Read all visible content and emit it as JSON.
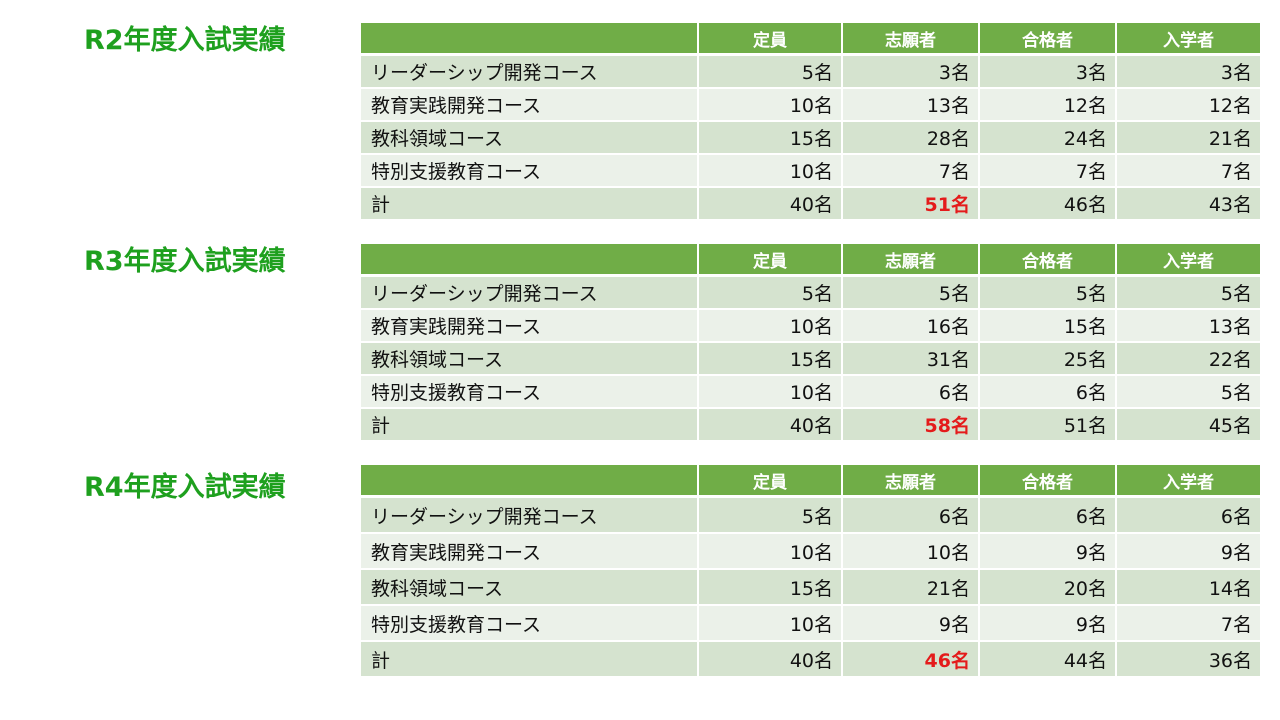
{
  "columns": {
    "course": "",
    "capacity": "定員",
    "applicants": "志願者",
    "passed": "合格者",
    "enrolled": "入学者"
  },
  "sections": [
    {
      "title": "R2年度入試実績",
      "rows": [
        {
          "course": "リーダーシップ開発コース",
          "capacity": "5名",
          "applicants": "3名",
          "passed": "3名",
          "enrolled": "3名"
        },
        {
          "course": "教育実践開発コース",
          "capacity": "10名",
          "applicants": "13名",
          "passed": "12名",
          "enrolled": "12名"
        },
        {
          "course": "教科領域コース",
          "capacity": "15名",
          "applicants": "28名",
          "passed": "24名",
          "enrolled": "21名"
        },
        {
          "course": "特別支援教育コース",
          "capacity": "10名",
          "applicants": "7名",
          "passed": "7名",
          "enrolled": "7名"
        },
        {
          "course": "計",
          "capacity": "40名",
          "applicants": "51名",
          "passed": "46名",
          "enrolled": "43名"
        }
      ]
    },
    {
      "title": "R3年度入試実績",
      "rows": [
        {
          "course": "リーダーシップ開発コース",
          "capacity": "5名",
          "applicants": "5名",
          "passed": "5名",
          "enrolled": "5名"
        },
        {
          "course": "教育実践開発コース",
          "capacity": "10名",
          "applicants": "16名",
          "passed": "15名",
          "enrolled": "13名"
        },
        {
          "course": "教科領域コース",
          "capacity": "15名",
          "applicants": "31名",
          "passed": "25名",
          "enrolled": "22名"
        },
        {
          "course": "特別支援教育コース",
          "capacity": "10名",
          "applicants": "6名",
          "passed": "6名",
          "enrolled": "5名"
        },
        {
          "course": "計",
          "capacity": "40名",
          "applicants": "58名",
          "passed": "51名",
          "enrolled": "45名"
        }
      ]
    },
    {
      "title": "R4年度入試実績",
      "rows": [
        {
          "course": "リーダーシップ開発コース",
          "capacity": "5名",
          "applicants": "6名",
          "passed": "6名",
          "enrolled": "6名"
        },
        {
          "course": "教育実践開発コース",
          "capacity": "10名",
          "applicants": "10名",
          "passed": "9名",
          "enrolled": "9名"
        },
        {
          "course": "教科領域コース",
          "capacity": "15名",
          "applicants": "21名",
          "passed": "20名",
          "enrolled": "14名"
        },
        {
          "course": "特別支援教育コース",
          "capacity": "10名",
          "applicants": "9名",
          "passed": "9名",
          "enrolled": "7名"
        },
        {
          "course": "計",
          "capacity": "40名",
          "applicants": "46名",
          "passed": "44名",
          "enrolled": "36名"
        }
      ]
    }
  ],
  "colors": {
    "title": "#1ea01e",
    "header_bg": "#70ad47",
    "row_odd": "#d5e3cf",
    "row_even": "#ebf1e9",
    "highlight": "#e41b1b"
  }
}
